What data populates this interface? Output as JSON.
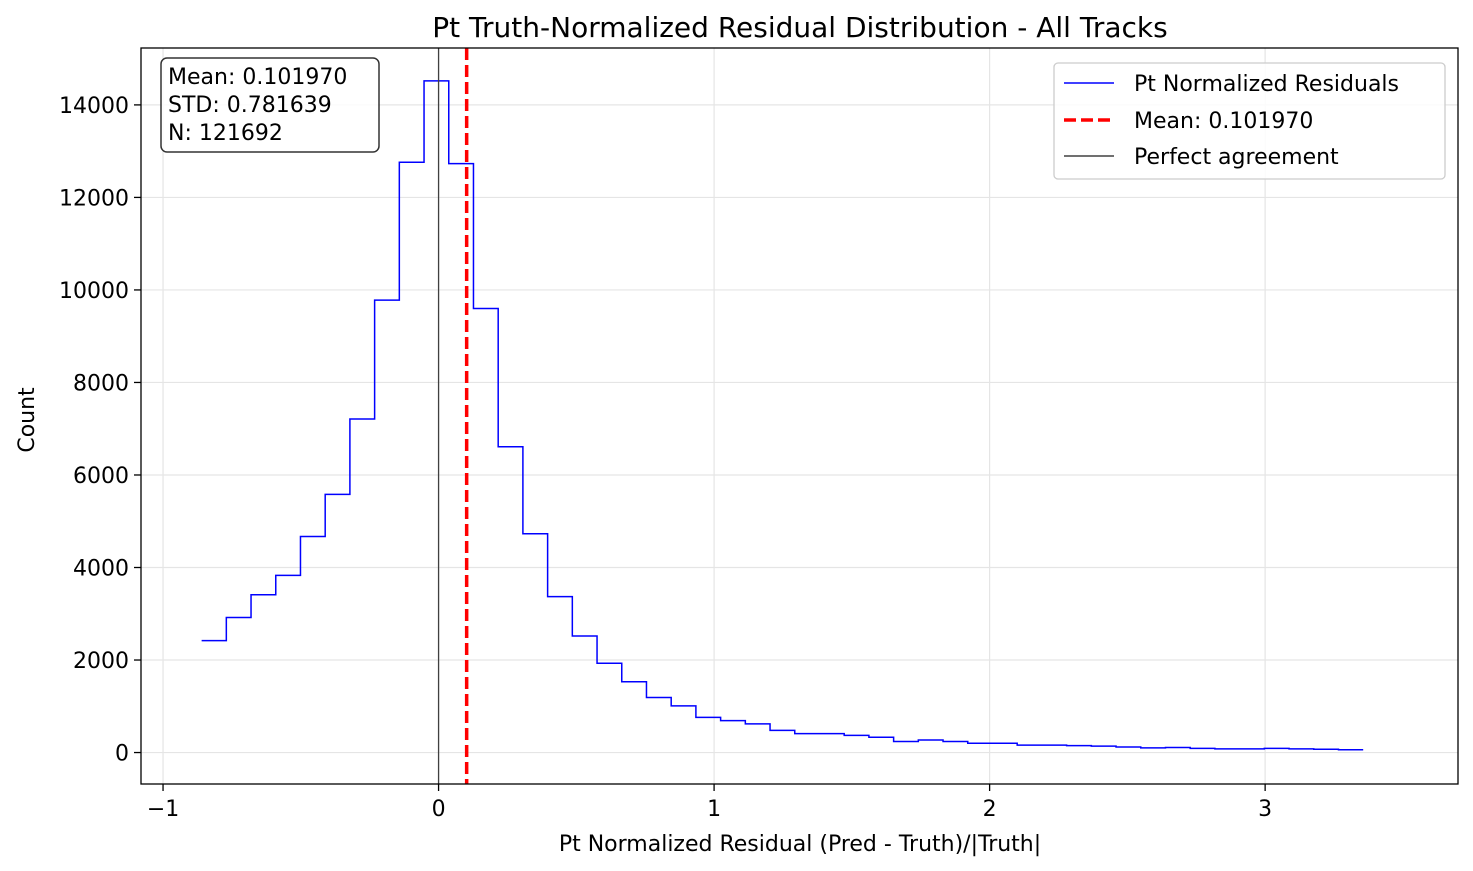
{
  "chart_data": {
    "type": "histogram",
    "title": "Pt Truth-Normalized Residual Distribution - All Tracks",
    "xlabel": "Pt Normalized Residual (Pred - Truth)/|Truth|",
    "ylabel": "Count",
    "xlim": [
      -1.08,
      3.7
    ],
    "ylim": [
      -680,
      15230
    ],
    "xticks": [
      -1,
      0,
      1,
      2,
      3
    ],
    "xtick_labels": [
      "−1",
      "0",
      "1",
      "2",
      "3"
    ],
    "yticks": [
      0,
      2000,
      4000,
      6000,
      8000,
      10000,
      12000,
      14000
    ],
    "grid": true,
    "legend_position": "top-right",
    "bin_start": -0.86,
    "bin_width": 0.0897,
    "counts": [
      2420,
      2920,
      3410,
      3830,
      4670,
      5580,
      7210,
      9780,
      12760,
      14520,
      12730,
      9600,
      6610,
      4730,
      3370,
      2520,
      1930,
      1530,
      1190,
      1010,
      760,
      690,
      620,
      480,
      410,
      410,
      370,
      330,
      240,
      270,
      240,
      200,
      200,
      160,
      160,
      150,
      140,
      120,
      100,
      110,
      90,
      80,
      80,
      90,
      80,
      70,
      60
    ],
    "series": [
      {
        "name": "Pt Normalized Residuals",
        "color": "#0000ff",
        "style": "step"
      },
      {
        "name": "Mean: 0.101970",
        "color": "#ff0000",
        "style": "dashed-vline",
        "x": 0.10197
      },
      {
        "name": "Perfect agreement",
        "color": "#404040",
        "style": "vline",
        "x": 0
      }
    ],
    "stats_box": {
      "lines": [
        "Mean: 0.101970",
        "STD: 0.781639",
        "N: 121692"
      ]
    }
  }
}
